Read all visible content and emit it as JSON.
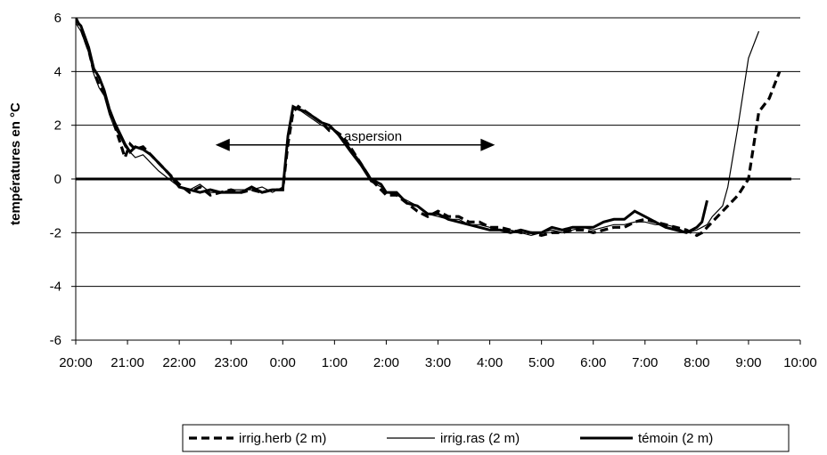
{
  "chart_data": {
    "type": "line",
    "title": "",
    "xlabel": "",
    "ylabel": "températures en °C",
    "ylim": [
      -6,
      6
    ],
    "y_ticks": [
      "-6",
      "-4",
      "-2",
      "0",
      "2",
      "4",
      "6"
    ],
    "x_tick_labels": [
      "20:00",
      "21:00",
      "22:00",
      "23:00",
      "0:00",
      "1:00",
      "2:00",
      "3:00",
      "4:00",
      "5:00",
      "6:00",
      "7:00",
      "8:00",
      "9:00",
      "10:00"
    ],
    "grid": "horizontal",
    "legend_position": "bottom",
    "annotation": {
      "text": "aspersion",
      "from_x": 2.7,
      "to_x": 8.1,
      "y": 1.5
    },
    "series": [
      {
        "name": "irrig.herb (2 m)",
        "style": "dashed-bold",
        "x": [
          0,
          0.1,
          0.25,
          0.35,
          0.45,
          0.55,
          0.65,
          0.75,
          0.85,
          0.95,
          1.05,
          1.15,
          1.3,
          1.45,
          1.6,
          1.8,
          2.0,
          2.2,
          2.4,
          2.6,
          2.8,
          3.0,
          3.2,
          3.4,
          3.6,
          3.8,
          4.0,
          4.1,
          4.2,
          4.3,
          4.45,
          4.6,
          4.75,
          4.9,
          5.0,
          5.15,
          5.3,
          5.5,
          5.7,
          5.9,
          6.0,
          6.2,
          6.4,
          6.6,
          6.8,
          7.0,
          7.2,
          7.4,
          7.6,
          7.8,
          8.0,
          8.2,
          8.4,
          8.6,
          8.8,
          9.0,
          9.2,
          9.4,
          9.6,
          9.8,
          10.0,
          10.2,
          10.4,
          10.6,
          10.8,
          11.0,
          11.2,
          11.4,
          11.6,
          11.8,
          12.0,
          12.1,
          12.2,
          12.3,
          12.45,
          12.6,
          12.8,
          13.0,
          13.2,
          13.4,
          13.6
        ],
        "y": [
          6.0,
          5.6,
          4.8,
          4.0,
          3.5,
          3.2,
          2.6,
          2.0,
          1.4,
          0.8,
          1.3,
          1.1,
          1.2,
          0.9,
          0.6,
          0.2,
          -0.2,
          -0.5,
          -0.3,
          -0.6,
          -0.5,
          -0.4,
          -0.5,
          -0.4,
          -0.5,
          -0.4,
          -0.4,
          1.3,
          2.5,
          2.7,
          2.5,
          2.3,
          2.1,
          1.8,
          1.8,
          1.6,
          1.2,
          0.6,
          0.0,
          -0.4,
          -0.6,
          -0.6,
          -0.9,
          -1.2,
          -1.4,
          -1.2,
          -1.4,
          -1.4,
          -1.6,
          -1.6,
          -1.8,
          -1.8,
          -1.9,
          -2.0,
          -2.0,
          -2.1,
          -2.0,
          -2.0,
          -1.9,
          -1.9,
          -2.0,
          -1.9,
          -1.8,
          -1.8,
          -1.6,
          -1.5,
          -1.6,
          -1.7,
          -1.8,
          -1.9,
          -2.1,
          -2.0,
          -1.8,
          -1.6,
          -1.3,
          -1.0,
          -0.6,
          0.0,
          2.5,
          3.0,
          4.0
        ]
      },
      {
        "name": "irrig.ras (2 m)",
        "style": "thin",
        "x": [
          0,
          0.1,
          0.25,
          0.35,
          0.45,
          0.55,
          0.65,
          0.75,
          0.85,
          0.95,
          1.05,
          1.15,
          1.3,
          1.45,
          1.6,
          1.8,
          2.0,
          2.2,
          2.4,
          2.6,
          2.8,
          3.0,
          3.2,
          3.4,
          3.6,
          3.8,
          4.0,
          4.1,
          4.2,
          4.3,
          4.45,
          4.6,
          4.75,
          4.9,
          5.0,
          5.15,
          5.3,
          5.5,
          5.7,
          5.9,
          6.0,
          6.2,
          6.4,
          6.6,
          6.8,
          7.0,
          7.2,
          7.4,
          7.6,
          7.8,
          8.0,
          8.2,
          8.4,
          8.6,
          8.8,
          9.0,
          9.2,
          9.4,
          9.6,
          9.8,
          10.0,
          10.2,
          10.4,
          10.6,
          10.8,
          11.0,
          11.2,
          11.4,
          11.6,
          11.8,
          12.0,
          12.1,
          12.2,
          12.3,
          12.4,
          12.5,
          12.6,
          12.8,
          13.0,
          13.2
        ],
        "y": [
          5.8,
          5.5,
          4.7,
          3.9,
          3.4,
          3.1,
          2.4,
          1.9,
          1.6,
          1.2,
          1.0,
          0.8,
          0.9,
          0.6,
          0.3,
          0.0,
          -0.3,
          -0.4,
          -0.2,
          -0.5,
          -0.5,
          -0.4,
          -0.4,
          -0.4,
          -0.3,
          -0.5,
          -0.3,
          1.5,
          2.6,
          2.6,
          2.4,
          2.2,
          2.0,
          1.9,
          1.8,
          1.4,
          1.0,
          0.5,
          -0.1,
          -0.3,
          -0.5,
          -0.6,
          -0.8,
          -1.0,
          -1.3,
          -1.4,
          -1.5,
          -1.5,
          -1.7,
          -1.7,
          -1.8,
          -1.9,
          -1.9,
          -2.0,
          -2.1,
          -2.0,
          -1.9,
          -2.0,
          -1.9,
          -1.8,
          -1.9,
          -1.8,
          -1.7,
          -1.7,
          -1.6,
          -1.6,
          -1.7,
          -1.7,
          -1.8,
          -2.0,
          -1.9,
          -1.8,
          -1.7,
          -1.4,
          -1.2,
          -1.0,
          -0.3,
          2.0,
          4.5,
          5.5
        ]
      },
      {
        "name": "témoin (2 m)",
        "style": "bold",
        "x": [
          0,
          0.1,
          0.25,
          0.35,
          0.45,
          0.55,
          0.65,
          0.75,
          0.85,
          0.95,
          1.05,
          1.15,
          1.3,
          1.45,
          1.6,
          1.8,
          2.0,
          2.2,
          2.4,
          2.6,
          2.8,
          3.0,
          3.2,
          3.4,
          3.6,
          3.8,
          4.0,
          4.1,
          4.2,
          4.3,
          4.45,
          4.6,
          4.75,
          4.9,
          5.0,
          5.15,
          5.3,
          5.5,
          5.7,
          5.9,
          6.0,
          6.2,
          6.4,
          6.6,
          6.8,
          7.0,
          7.2,
          7.4,
          7.6,
          7.8,
          8.0,
          8.2,
          8.4,
          8.6,
          8.8,
          9.0,
          9.2,
          9.4,
          9.6,
          9.8,
          10.0,
          10.2,
          10.4,
          10.6,
          10.8,
          11.0,
          11.2,
          11.4,
          11.6,
          11.8,
          11.9,
          12.0,
          12.1,
          12.2
        ],
        "y": [
          5.9,
          5.7,
          4.9,
          4.1,
          3.8,
          3.3,
          2.6,
          2.1,
          1.7,
          1.3,
          1.0,
          1.2,
          1.1,
          0.9,
          0.6,
          0.2,
          -0.3,
          -0.4,
          -0.5,
          -0.4,
          -0.5,
          -0.5,
          -0.5,
          -0.3,
          -0.5,
          -0.4,
          -0.4,
          1.6,
          2.7,
          2.6,
          2.5,
          2.3,
          2.1,
          2.0,
          1.8,
          1.5,
          1.1,
          0.6,
          0.0,
          -0.2,
          -0.5,
          -0.5,
          -0.9,
          -1.0,
          -1.3,
          -1.3,
          -1.5,
          -1.6,
          -1.7,
          -1.8,
          -1.9,
          -1.9,
          -2.0,
          -1.9,
          -2.0,
          -2.0,
          -1.8,
          -1.9,
          -1.8,
          -1.8,
          -1.8,
          -1.6,
          -1.5,
          -1.5,
          -1.2,
          -1.4,
          -1.6,
          -1.8,
          -1.9,
          -2.0,
          -1.9,
          -1.8,
          -1.6,
          -0.8
        ]
      }
    ]
  }
}
